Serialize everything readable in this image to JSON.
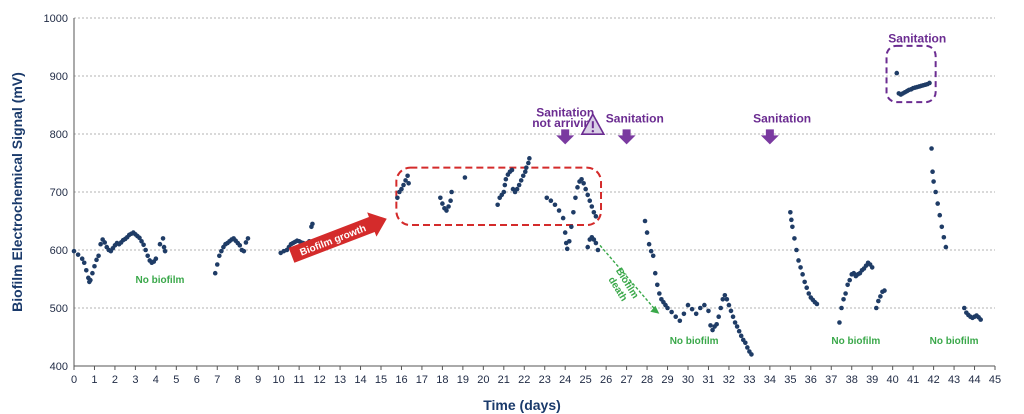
{
  "chart_data": {
    "type": "scatter",
    "xlabel": "Time (days)",
    "ylabel": "Biofilm Electrochemical Signal (mV)",
    "xlim": [
      0,
      45
    ],
    "ylim": [
      400,
      1000
    ],
    "x_ticks": [
      0,
      1,
      2,
      3,
      4,
      5,
      6,
      7,
      8,
      9,
      10,
      11,
      12,
      13,
      14,
      15,
      16,
      17,
      18,
      19,
      20,
      21,
      22,
      23,
      24,
      25,
      26,
      27,
      28,
      29,
      30,
      31,
      32,
      33,
      34,
      35,
      36,
      37,
      38,
      39,
      40,
      41,
      42,
      43,
      44,
      45
    ],
    "y_ticks": [
      400,
      500,
      600,
      700,
      800,
      900,
      1000
    ],
    "grid": "horizontal dotted",
    "marker_color": "#1f3c66",
    "series": [
      {
        "points": [
          [
            0,
            598
          ],
          [
            0.2,
            592
          ],
          [
            0.4,
            585
          ],
          [
            0.5,
            578
          ],
          [
            0.6,
            565
          ],
          [
            0.7,
            552
          ],
          [
            0.75,
            545
          ],
          [
            0.8,
            548
          ],
          [
            0.9,
            560
          ],
          [
            1.0,
            572
          ],
          [
            1.1,
            583
          ],
          [
            1.2,
            590
          ],
          [
            1.3,
            610
          ],
          [
            1.4,
            618
          ],
          [
            1.5,
            613
          ],
          [
            1.6,
            605
          ],
          [
            1.7,
            600
          ],
          [
            1.8,
            598
          ],
          [
            1.9,
            603
          ],
          [
            2.0,
            608
          ],
          [
            2.1,
            612
          ],
          [
            2.2,
            610
          ],
          [
            2.3,
            613
          ],
          [
            2.4,
            617
          ],
          [
            2.5,
            619
          ],
          [
            2.6,
            622
          ],
          [
            2.7,
            626
          ],
          [
            2.8,
            628
          ],
          [
            2.9,
            630
          ],
          [
            3.0,
            627
          ],
          [
            3.1,
            624
          ],
          [
            3.2,
            621
          ],
          [
            3.3,
            615
          ],
          [
            3.4,
            609
          ],
          [
            3.5,
            600
          ],
          [
            3.6,
            590
          ],
          [
            3.7,
            582
          ],
          [
            3.8,
            578
          ],
          [
            3.9,
            580
          ],
          [
            4.0,
            585
          ],
          [
            4.2,
            610
          ],
          [
            4.35,
            620
          ],
          [
            4.4,
            605
          ],
          [
            4.45,
            598
          ]
        ]
      },
      {
        "points": [
          [
            6.9,
            560
          ],
          [
            7.0,
            575
          ],
          [
            7.1,
            590
          ],
          [
            7.2,
            598
          ],
          [
            7.3,
            605
          ],
          [
            7.4,
            610
          ],
          [
            7.5,
            612
          ],
          [
            7.6,
            615
          ],
          [
            7.7,
            618
          ],
          [
            7.8,
            620
          ],
          [
            7.9,
            616
          ],
          [
            8.0,
            612
          ],
          [
            8.1,
            608
          ],
          [
            8.2,
            600
          ],
          [
            8.3,
            598
          ],
          [
            8.4,
            613
          ],
          [
            8.5,
            620
          ]
        ]
      },
      {
        "points": [
          [
            10.1,
            595
          ],
          [
            10.25,
            598
          ],
          [
            10.4,
            600
          ],
          [
            10.5,
            605
          ],
          [
            10.6,
            610
          ],
          [
            10.7,
            612
          ],
          [
            10.8,
            614
          ],
          [
            10.9,
            616
          ],
          [
            11.0,
            615
          ],
          [
            11.1,
            613
          ],
          [
            11.2,
            612
          ],
          [
            11.3,
            610
          ],
          [
            11.4,
            612
          ],
          [
            11.5,
            615
          ],
          [
            11.55,
            605
          ],
          [
            11.6,
            640
          ],
          [
            11.65,
            645
          ]
        ]
      },
      {
        "points": [
          [
            15.8,
            690
          ],
          [
            15.9,
            700
          ],
          [
            16.0,
            705
          ],
          [
            16.1,
            712
          ],
          [
            16.2,
            720
          ],
          [
            16.3,
            728
          ],
          [
            16.35,
            715
          ]
        ]
      },
      {
        "points": [
          [
            17.9,
            690
          ],
          [
            18.0,
            680
          ],
          [
            18.1,
            672
          ],
          [
            18.2,
            668
          ],
          [
            18.3,
            675
          ],
          [
            18.4,
            685
          ],
          [
            18.45,
            700
          ]
        ]
      },
      {
        "points": [
          [
            19.1,
            725
          ]
        ]
      },
      {
        "points": [
          [
            20.7,
            678
          ],
          [
            20.8,
            690
          ],
          [
            20.9,
            695
          ],
          [
            21.0,
            700
          ],
          [
            21.05,
            712
          ],
          [
            21.1,
            722
          ],
          [
            21.2,
            730
          ],
          [
            21.3,
            735
          ],
          [
            21.4,
            738
          ],
          [
            21.45,
            705
          ],
          [
            21.55,
            700
          ],
          [
            21.65,
            705
          ],
          [
            21.75,
            712
          ],
          [
            21.85,
            720
          ],
          [
            21.95,
            728
          ],
          [
            22.05,
            735
          ],
          [
            22.1,
            742
          ],
          [
            22.2,
            750
          ],
          [
            22.25,
            758
          ]
        ]
      },
      {
        "points": [
          [
            23.1,
            690
          ],
          [
            23.3,
            685
          ],
          [
            23.5,
            678
          ],
          [
            23.7,
            668
          ],
          [
            23.9,
            655
          ],
          [
            24.0,
            630
          ],
          [
            24.05,
            612
          ],
          [
            24.1,
            602
          ],
          [
            24.2,
            615
          ],
          [
            24.3,
            640
          ],
          [
            24.4,
            665
          ],
          [
            24.5,
            690
          ],
          [
            24.6,
            708
          ],
          [
            24.7,
            718
          ],
          [
            24.8,
            722
          ],
          [
            24.9,
            715
          ],
          [
            25.0,
            705
          ],
          [
            25.1,
            695
          ],
          [
            25.2,
            685
          ],
          [
            25.3,
            675
          ],
          [
            25.4,
            665
          ],
          [
            25.5,
            658
          ]
        ]
      },
      {
        "points": [
          [
            25.1,
            605
          ],
          [
            25.2,
            618
          ],
          [
            25.3,
            622
          ],
          [
            25.4,
            618
          ],
          [
            25.5,
            612
          ],
          [
            25.6,
            600
          ]
        ]
      },
      {
        "points": [
          [
            27.9,
            650
          ],
          [
            28.0,
            630
          ],
          [
            28.1,
            610
          ],
          [
            28.2,
            598
          ],
          [
            28.3,
            590
          ],
          [
            28.4,
            560
          ],
          [
            28.5,
            540
          ],
          [
            28.6,
            525
          ],
          [
            28.7,
            515
          ],
          [
            28.8,
            510
          ],
          [
            28.9,
            505
          ],
          [
            29.0,
            500
          ],
          [
            29.2,
            493
          ],
          [
            29.4,
            485
          ],
          [
            29.6,
            478
          ],
          [
            29.8,
            490
          ],
          [
            30.0,
            505
          ],
          [
            30.2,
            498
          ],
          [
            30.4,
            490
          ],
          [
            30.6,
            500
          ],
          [
            30.8,
            505
          ],
          [
            31.0,
            495
          ],
          [
            31.1,
            470
          ],
          [
            31.2,
            462
          ],
          [
            31.3,
            468
          ],
          [
            31.4,
            472
          ],
          [
            31.5,
            485
          ],
          [
            31.6,
            500
          ],
          [
            31.7,
            515
          ],
          [
            31.8,
            522
          ],
          [
            31.9,
            515
          ],
          [
            32.0,
            505
          ],
          [
            32.1,
            495
          ],
          [
            32.2,
            485
          ],
          [
            32.3,
            475
          ],
          [
            32.4,
            468
          ],
          [
            32.5,
            460
          ],
          [
            32.6,
            452
          ],
          [
            32.7,
            445
          ],
          [
            32.8,
            440
          ],
          [
            32.9,
            432
          ],
          [
            33.0,
            425
          ],
          [
            33.1,
            420
          ]
        ]
      },
      {
        "points": [
          [
            35.0,
            665
          ],
          [
            35.05,
            652
          ],
          [
            35.1,
            640
          ],
          [
            35.2,
            620
          ],
          [
            35.3,
            600
          ],
          [
            35.4,
            582
          ],
          [
            35.5,
            570
          ],
          [
            35.6,
            558
          ],
          [
            35.7,
            545
          ],
          [
            35.8,
            535
          ],
          [
            35.9,
            525
          ],
          [
            36.0,
            518
          ],
          [
            36.1,
            514
          ],
          [
            36.2,
            510
          ],
          [
            36.3,
            507
          ]
        ]
      },
      {
        "points": [
          [
            37.4,
            475
          ],
          [
            37.5,
            500
          ],
          [
            37.6,
            515
          ],
          [
            37.7,
            525
          ],
          [
            37.8,
            540
          ],
          [
            37.9,
            548
          ],
          [
            38.0,
            558
          ],
          [
            38.1,
            560
          ],
          [
            38.2,
            555
          ],
          [
            38.3,
            558
          ],
          [
            38.4,
            560
          ],
          [
            38.5,
            565
          ],
          [
            38.6,
            568
          ],
          [
            38.7,
            573
          ],
          [
            38.8,
            578
          ],
          [
            38.9,
            575
          ],
          [
            39.0,
            570
          ]
        ]
      },
      {
        "points": [
          [
            39.2,
            500
          ],
          [
            39.3,
            512
          ],
          [
            39.4,
            520
          ],
          [
            39.5,
            528
          ],
          [
            39.6,
            530
          ]
        ]
      },
      {
        "points": [
          [
            40.2,
            905
          ],
          [
            40.3,
            870
          ],
          [
            40.4,
            868
          ],
          [
            40.5,
            870
          ],
          [
            40.6,
            872
          ],
          [
            40.7,
            874
          ],
          [
            40.8,
            876
          ],
          [
            40.9,
            877
          ],
          [
            41.0,
            879
          ],
          [
            41.1,
            880
          ],
          [
            41.2,
            881
          ],
          [
            41.3,
            882
          ],
          [
            41.4,
            883
          ],
          [
            41.5,
            884
          ],
          [
            41.6,
            885
          ],
          [
            41.7,
            886
          ],
          [
            41.8,
            888
          ]
        ]
      },
      {
        "points": [
          [
            41.9,
            775
          ],
          [
            41.95,
            735
          ],
          [
            42.0,
            718
          ],
          [
            42.1,
            700
          ],
          [
            42.2,
            680
          ],
          [
            42.3,
            660
          ],
          [
            42.4,
            640
          ],
          [
            42.5,
            622
          ],
          [
            42.6,
            605
          ]
        ]
      },
      {
        "points": [
          [
            43.5,
            500
          ],
          [
            43.6,
            492
          ],
          [
            43.7,
            488
          ],
          [
            43.8,
            485
          ],
          [
            43.9,
            483
          ],
          [
            44.0,
            485
          ],
          [
            44.1,
            487
          ],
          [
            44.2,
            484
          ],
          [
            44.3,
            480
          ]
        ]
      }
    ],
    "annotations": [
      {
        "text": "Sanitation",
        "kind": "purple-label",
        "x": 24.0,
        "y": 830
      },
      {
        "text": "not arriving",
        "kind": "purple-label",
        "x": 24.0,
        "y": 812
      },
      {
        "text": "Sanitation",
        "kind": "purple-label",
        "x": 27.4,
        "y": 820
      },
      {
        "text": "Sanitation",
        "kind": "purple-label",
        "x": 34.6,
        "y": 820
      },
      {
        "text": "Sanitation",
        "kind": "purple-label",
        "x": 41.2,
        "y": 958
      },
      {
        "text": "No biofilm",
        "kind": "green-label",
        "x": 4.2,
        "y": 543
      },
      {
        "text": "No biofilm",
        "kind": "green-label",
        "x": 30.3,
        "y": 438
      },
      {
        "text": "No biofilm",
        "kind": "green-label",
        "x": 38.2,
        "y": 438
      },
      {
        "text": "No biofilm",
        "kind": "green-label",
        "x": 43.0,
        "y": 438
      },
      {
        "text": "Biofilm growth",
        "kind": "red-arrow-label"
      },
      {
        "text": "Biofilm death",
        "kind": "green-arrow-label"
      }
    ],
    "arrows_down_at_x": [
      24.0,
      27.0,
      34.0
    ]
  }
}
